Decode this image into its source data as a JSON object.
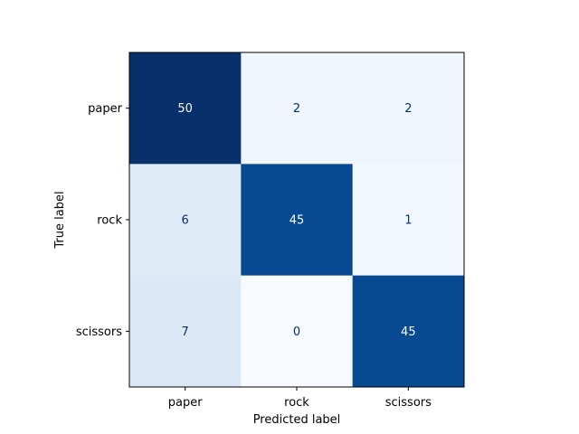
{
  "chart_data": {
    "type": "heatmap",
    "xlabel": "Predicted label",
    "ylabel": "True label",
    "x_categories": [
      "paper",
      "rock",
      "scissors"
    ],
    "y_categories": [
      "paper",
      "rock",
      "scissors"
    ],
    "values": [
      [
        50,
        2,
        2
      ],
      [
        6,
        45,
        1
      ],
      [
        7,
        0,
        45
      ]
    ],
    "vmin": 0,
    "vmax": 50,
    "colormap": "Blues",
    "colorbar": false,
    "grid": false
  }
}
